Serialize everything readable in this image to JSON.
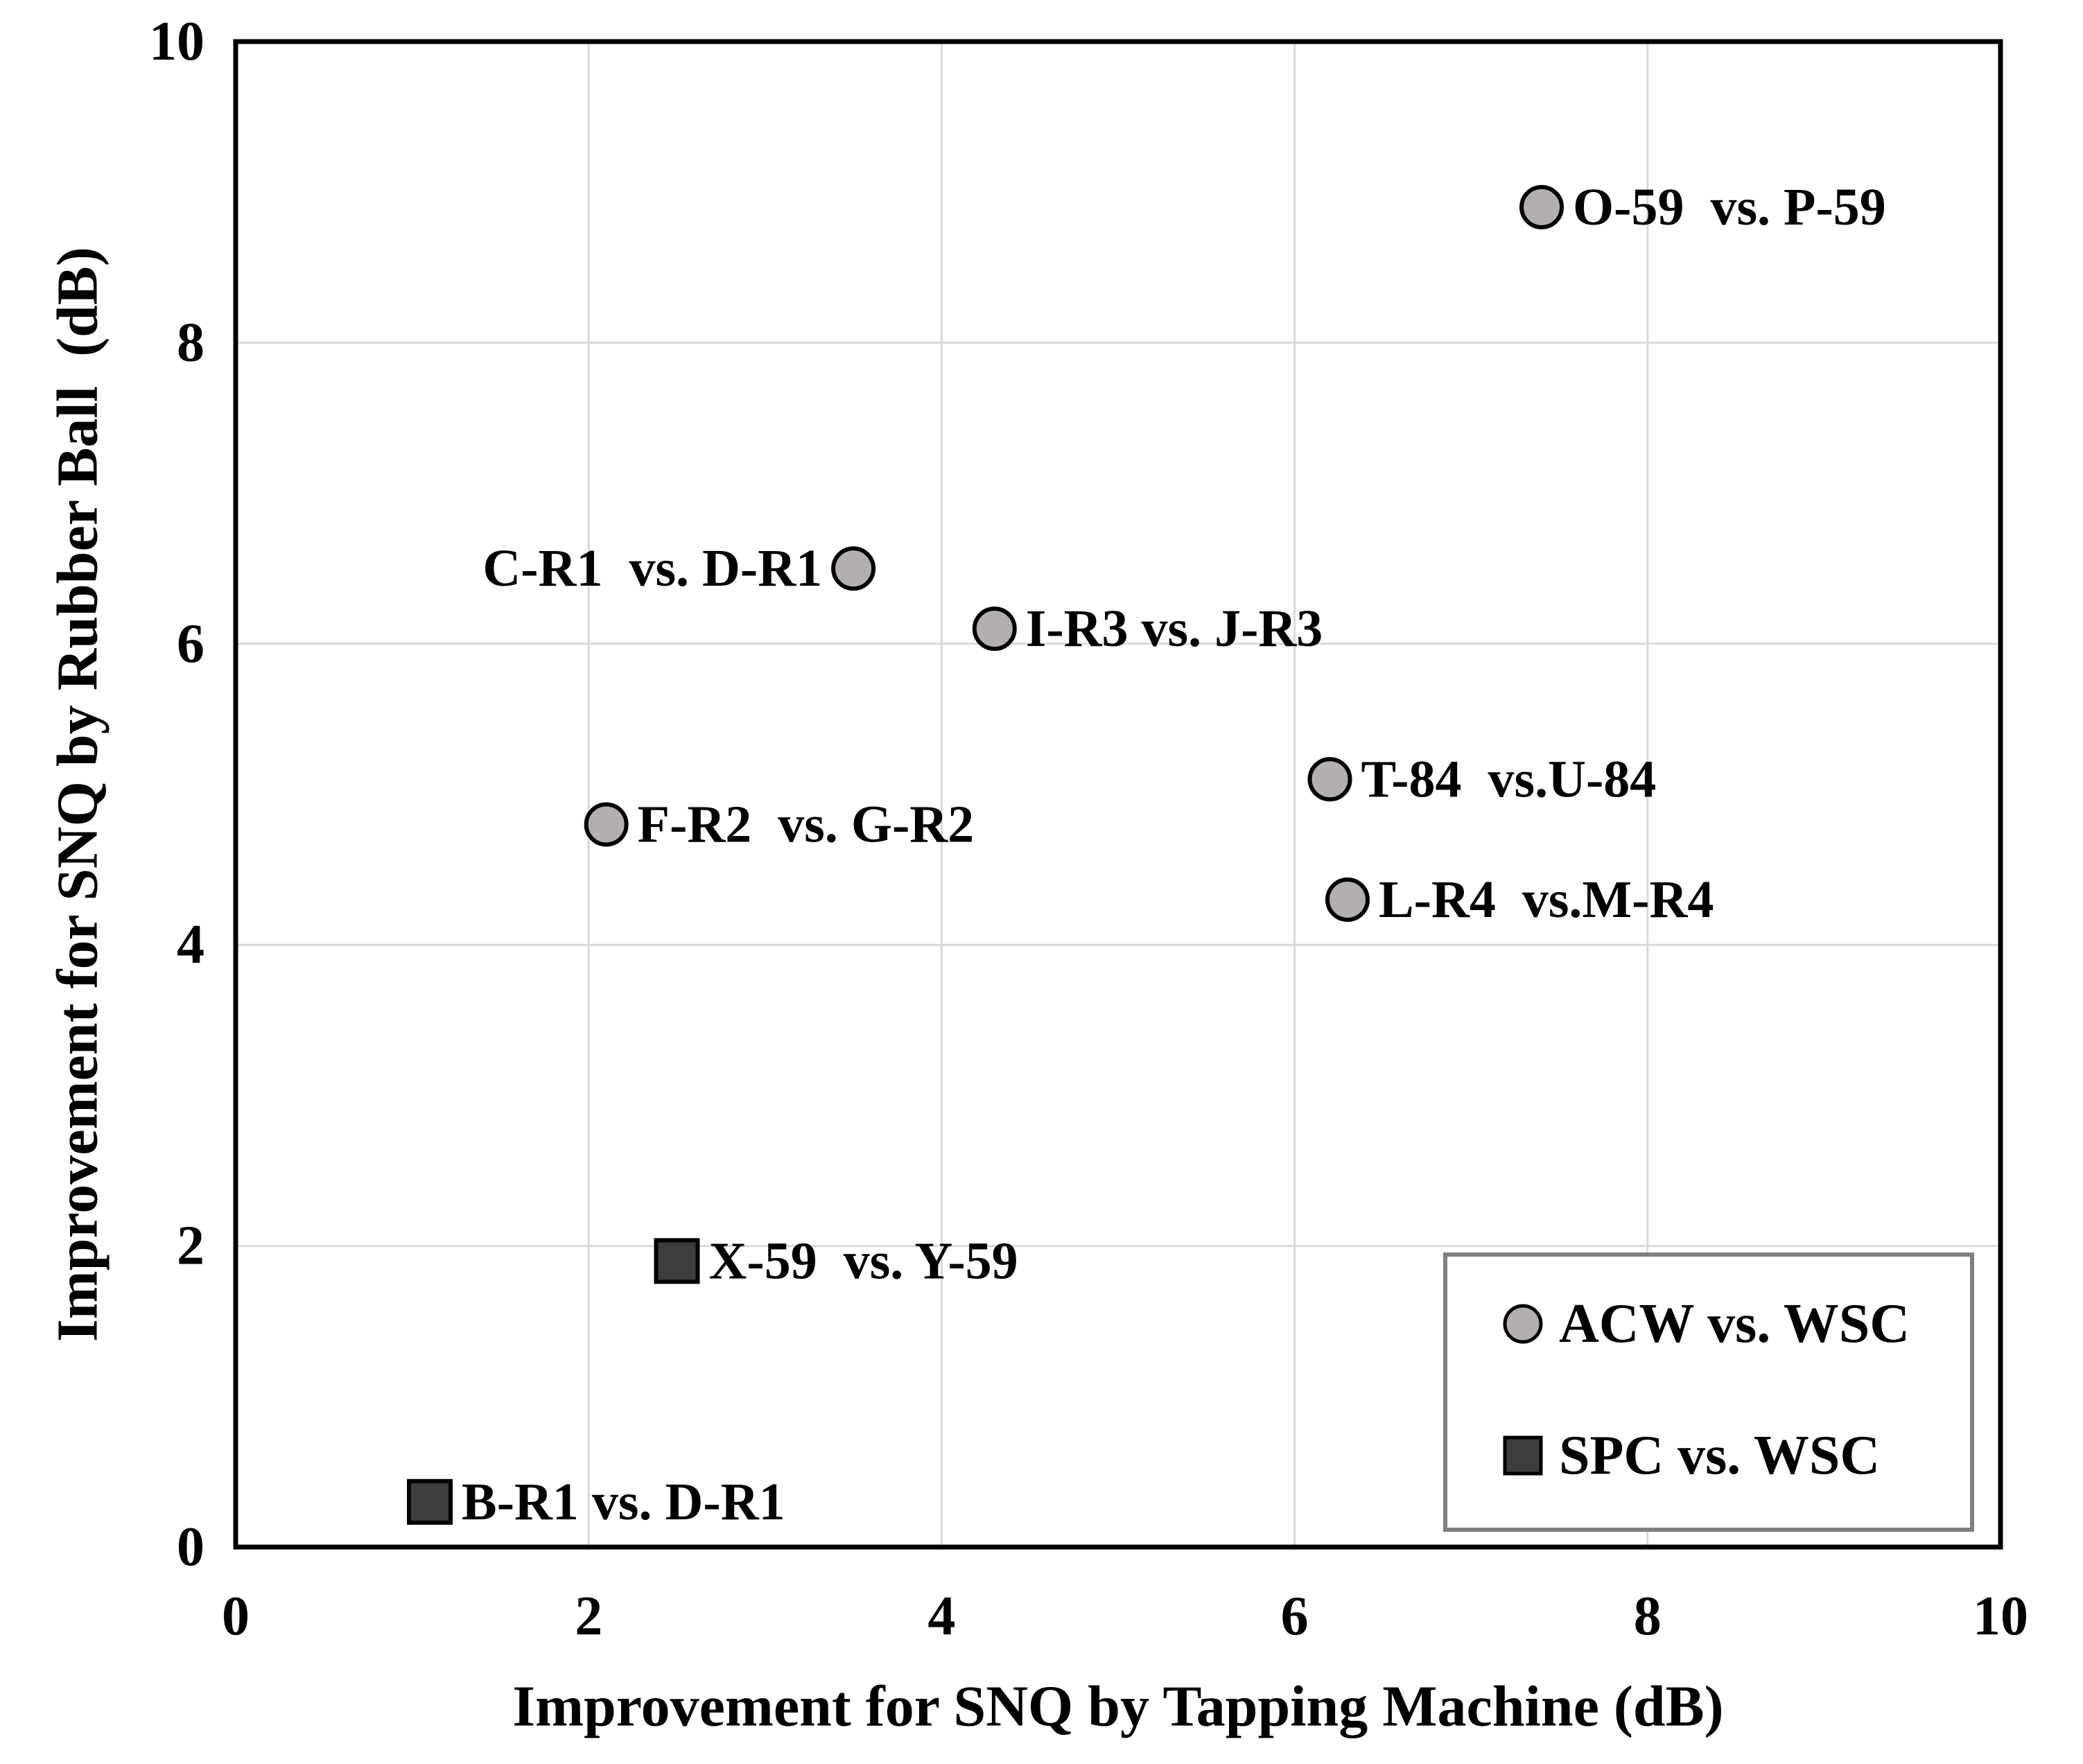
{
  "figure": {
    "description": "Scatter plot comparing SNQ improvement measured by tapping machine vs rubber ball"
  },
  "chart_data": {
    "type": "scatter",
    "title": "",
    "xlabel": "Improvement for SNQ by Tapping Machine (dB)",
    "ylabel": "Improvement for SNQ by Rubber Ball  (dB)",
    "xlim": [
      0,
      10
    ],
    "ylim": [
      0,
      10
    ],
    "xticks": [
      "0",
      "2",
      "4",
      "6",
      "8",
      "10"
    ],
    "yticks": [
      "0",
      "2",
      "4",
      "6",
      "8",
      "10"
    ],
    "grid": true,
    "grid_ticks": [
      2,
      4,
      6,
      8
    ],
    "legend": {
      "position": "bottom-right",
      "items": [
        {
          "label": "ACW vs. WSC",
          "marker": "circle"
        },
        {
          "label": "SPC vs. WSC",
          "marker": "square"
        }
      ]
    },
    "series": [
      {
        "name": "ACW vs. WSC",
        "marker": "circle",
        "fill": "#b3afaf",
        "stroke": "#000000",
        "points": [
          {
            "x": 7.4,
            "y": 8.9,
            "label": "O-59  vs. P-59",
            "label_side": "right"
          },
          {
            "x": 3.5,
            "y": 6.5,
            "label": "C-R1  vs. D-R1",
            "label_side": "left"
          },
          {
            "x": 4.3,
            "y": 6.1,
            "label": "I-R3 vs. J-R3",
            "label_side": "right"
          },
          {
            "x": 6.2,
            "y": 5.1,
            "label": "T-84  vs.U-84",
            "label_side": "right"
          },
          {
            "x": 2.1,
            "y": 4.8,
            "label": "F-R2  vs. G-R2",
            "label_side": "right"
          },
          {
            "x": 6.3,
            "y": 4.3,
            "label": "L-R4  vs.M-R4",
            "label_side": "right"
          }
        ]
      },
      {
        "name": "SPC vs. WSC",
        "marker": "square",
        "fill": "#3d3d3d",
        "stroke": "#000000",
        "points": [
          {
            "x": 2.5,
            "y": 1.9,
            "label": "X-59  vs. Y-59",
            "label_side": "right"
          },
          {
            "x": 1.1,
            "y": 0.3,
            "label": "B-R1 vs. D-R1",
            "label_side": "right"
          }
        ]
      }
    ],
    "colors": {
      "grid": "#d9d9d9",
      "axis": "#000000",
      "text": "#000000",
      "legend_border": "#7f7f7f",
      "background": "#ffffff"
    }
  }
}
